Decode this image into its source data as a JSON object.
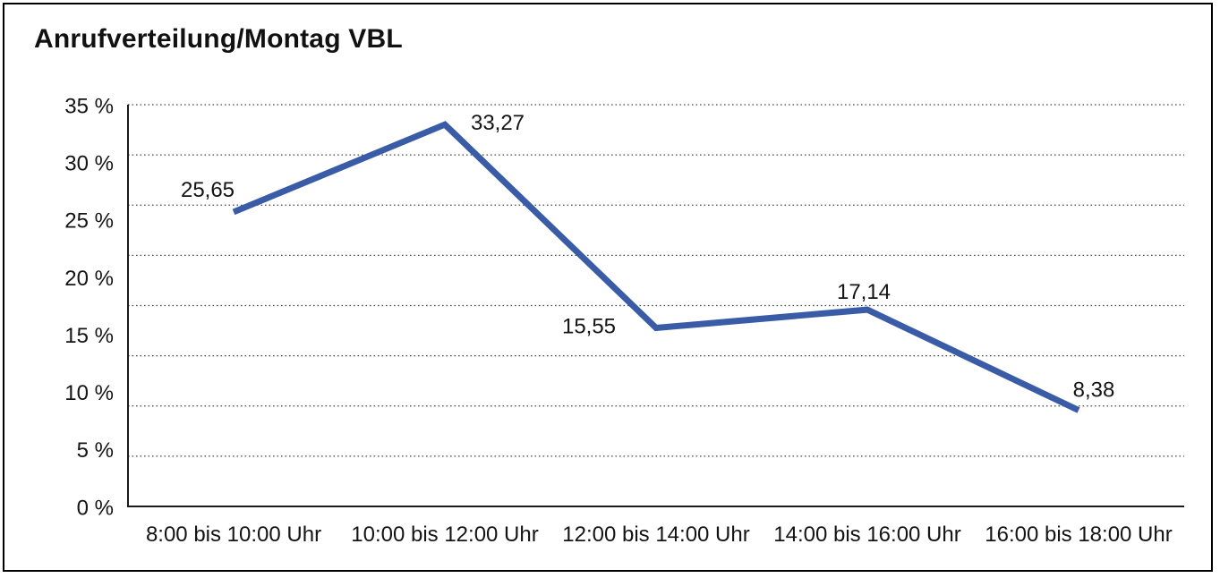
{
  "page": {
    "title": "Anrufverteilung/Montag VBL"
  },
  "chart_data": {
    "type": "line",
    "title": "Anrufverteilung/Montag VBL",
    "categories": [
      "8:00 bis 10:00 Uhr",
      "10:00 bis 12:00 Uhr",
      "12:00 bis 14:00 Uhr",
      "14:00 bis 16:00 Uhr",
      "16:00 bis 18:00 Uhr"
    ],
    "values": [
      25.65,
      33.27,
      15.55,
      17.14,
      8.38
    ],
    "value_labels": [
      "25,65",
      "33,27",
      "15,55",
      "17,14",
      "8,38"
    ],
    "y_tick_labels": [
      "35 %",
      "30 %",
      "25 %",
      "20 %",
      "15 %",
      "10 %",
      "5 %",
      "0 %"
    ],
    "ylim": [
      0,
      35
    ],
    "y_tick_step": 5,
    "xlabel": "",
    "ylabel": "",
    "legend": "none",
    "grid": "horizontal-dotted",
    "gridline_intervals": 8,
    "number_format": "decimal-comma",
    "colors": {
      "line": "#3a5ca6",
      "axis": "#1a1a1a",
      "grid": "#474747",
      "text": "#141414",
      "background": "#ffffff"
    }
  }
}
